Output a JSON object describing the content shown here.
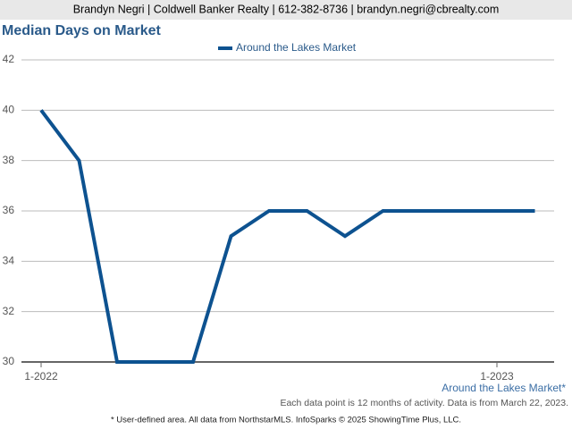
{
  "header": "Brandyn Negri | Coldwell Banker Realty | 612-382-8736 | brandyn.negri@cbrealty.com",
  "chart_data": {
    "type": "line",
    "title": "Median Days on Market",
    "categories": [
      "1-2022",
      null,
      null,
      null,
      null,
      null,
      null,
      null,
      null,
      null,
      null,
      null,
      "1-2023",
      null
    ],
    "series": [
      {
        "name": "Around the Lakes Market",
        "color": "#0d5290",
        "values": [
          40,
          38,
          30,
          30,
          30,
          35,
          36,
          36,
          35,
          36,
          36,
          36,
          36,
          36
        ]
      }
    ],
    "ylim": [
      30,
      42
    ],
    "yticks": [
      30,
      32,
      34,
      36,
      38,
      40,
      42
    ],
    "grid": true,
    "legend": "top",
    "area_label": "Around the Lakes Market*",
    "note": "Each data point is 12 months of activity. Data is from March 22, 2023.",
    "footer": "* User-defined area. All data from NorthstarMLS. InfoSparks © 2025 ShowingTime Plus, LLC."
  }
}
